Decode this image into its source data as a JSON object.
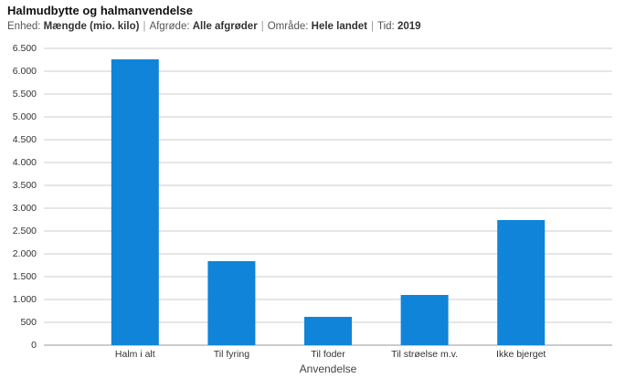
{
  "chart_data": {
    "type": "bar",
    "title": "Halmudbytte og halmanvendelse",
    "filters": [
      {
        "label": "Enhed:",
        "value": "Mængde (mio. kilo)"
      },
      {
        "label": "Afgrøde:",
        "value": "Alle afgrøder"
      },
      {
        "label": "Område:",
        "value": "Hele landet"
      },
      {
        "label": "Tid:",
        "value": "2019"
      }
    ],
    "separator": "|",
    "x_label": "Anvendelse",
    "categories": [
      "Halm i alt",
      "Til fyring",
      "Til foder",
      "Til strøelse m.v.",
      "Ikke bjerget"
    ],
    "values": [
      6260,
      1840,
      620,
      1100,
      2740
    ],
    "color": "#0f84d9",
    "ylim": [
      0,
      6500
    ],
    "yticks": [
      0,
      500,
      {
        "value": 1000,
        "label": "1.000"
      },
      {
        "value": 1500,
        "label": "1.500"
      },
      {
        "value": 2000,
        "label": "2.000"
      },
      {
        "value": 2500,
        "label": "2.500"
      },
      {
        "value": 3000,
        "label": "3.000"
      },
      {
        "value": 3500,
        "label": "3.500"
      },
      {
        "value": 4000,
        "label": "4.000"
      },
      {
        "value": 4500,
        "label": "4.500"
      },
      {
        "value": 5000,
        "label": "5.000"
      },
      {
        "value": 5500,
        "label": "5.500"
      },
      {
        "value": 6000,
        "label": "6.000"
      },
      {
        "value": 6500,
        "label": "6.500"
      }
    ],
    "grid": true
  }
}
